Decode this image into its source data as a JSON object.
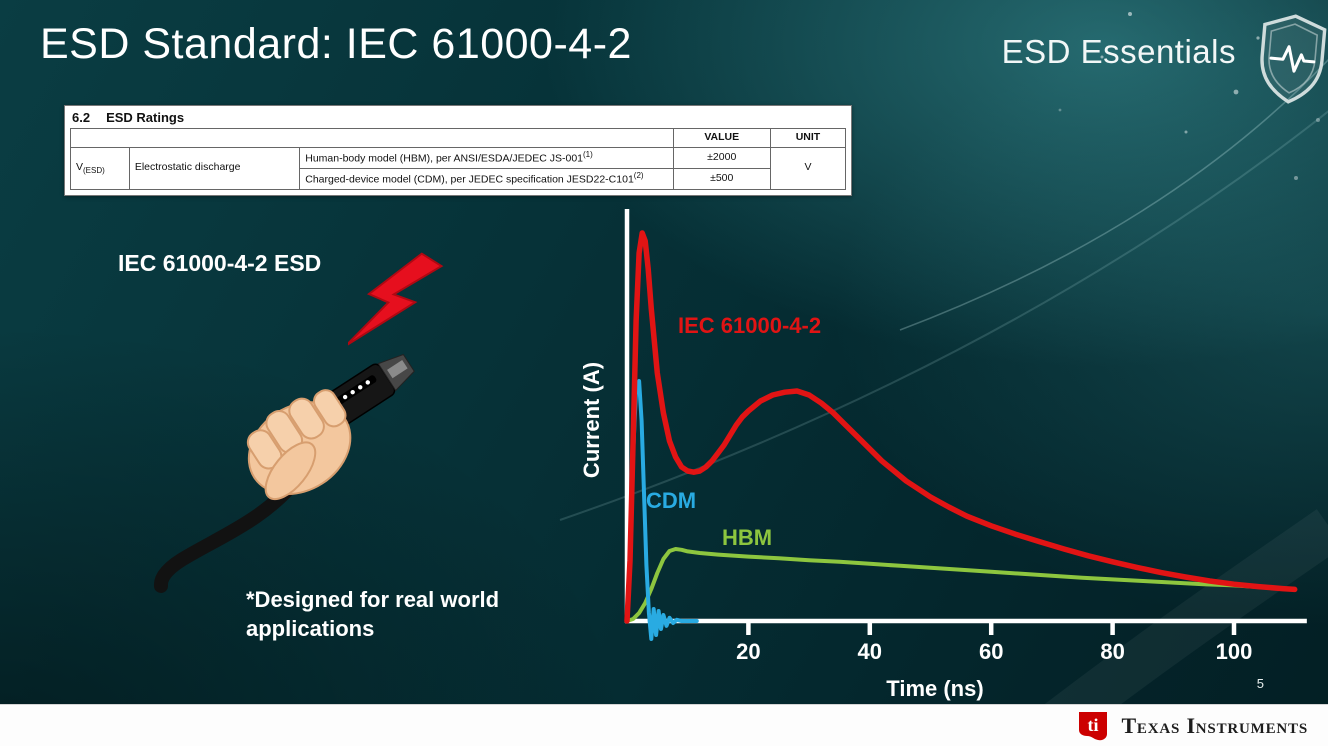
{
  "slide": {
    "title": "ESD Standard: IEC 61000-4-2",
    "brand": "ESD Essentials",
    "page_number": "5",
    "footer_text": "Texas Instruments"
  },
  "table": {
    "section": "6.2",
    "section_title": "ESD Ratings",
    "col_value": "VALUE",
    "col_unit": "UNIT",
    "symbol_base": "V",
    "symbol_sub": "(ESD)",
    "parameter": "Electrostatic discharge",
    "rows": [
      {
        "desc": "Human-body model (HBM), per ANSI/ESDA/JEDEC JS-001",
        "sup": "(1)",
        "value": "±2000"
      },
      {
        "desc": "Charged-device model (CDM), per JEDEC specification JESD22-C101",
        "sup": "(2)",
        "value": "±500"
      }
    ],
    "unit": "V"
  },
  "left": {
    "label": "IEC 61000-4-2 ESD",
    "note": "*Designed for real world\napplications"
  },
  "chart_data": {
    "type": "line",
    "title": "",
    "xlabel": "Time (ns)",
    "ylabel": "Current (A)",
    "xlim": [
      0,
      112
    ],
    "ylim": [
      -0.07,
      1.05
    ],
    "xticks": [
      20,
      40,
      60,
      80,
      100
    ],
    "y_units": "relative amplitude (no numeric y-axis scale shown)",
    "grid": false,
    "legend_position": "labels next to curves",
    "series": [
      {
        "name": "IEC 61000-4-2",
        "color": "#e11414",
        "points": [
          [
            0,
            0
          ],
          [
            0.5,
            0.15
          ],
          [
            1,
            0.45
          ],
          [
            1.5,
            0.75
          ],
          [
            2,
            0.92
          ],
          [
            2.5,
            0.97
          ],
          [
            3,
            0.95
          ],
          [
            3.5,
            0.88
          ],
          [
            4,
            0.78
          ],
          [
            5,
            0.62
          ],
          [
            6,
            0.52
          ],
          [
            7,
            0.45
          ],
          [
            8,
            0.41
          ],
          [
            9,
            0.385
          ],
          [
            10,
            0.375
          ],
          [
            11,
            0.372
          ],
          [
            12,
            0.375
          ],
          [
            13,
            0.385
          ],
          [
            14,
            0.4
          ],
          [
            15,
            0.42
          ],
          [
            16,
            0.44
          ],
          [
            17,
            0.465
          ],
          [
            18,
            0.49
          ],
          [
            19,
            0.51
          ],
          [
            20,
            0.525
          ],
          [
            22,
            0.55
          ],
          [
            24,
            0.565
          ],
          [
            26,
            0.572
          ],
          [
            28,
            0.575
          ],
          [
            30,
            0.565
          ],
          [
            32,
            0.545
          ],
          [
            34,
            0.52
          ],
          [
            36,
            0.49
          ],
          [
            38,
            0.46
          ],
          [
            40,
            0.43
          ],
          [
            42,
            0.4
          ],
          [
            44,
            0.375
          ],
          [
            46,
            0.35
          ],
          [
            48,
            0.33
          ],
          [
            50,
            0.31
          ],
          [
            53,
            0.285
          ],
          [
            56,
            0.262
          ],
          [
            60,
            0.238
          ],
          [
            64,
            0.217
          ],
          [
            68,
            0.198
          ],
          [
            72,
            0.18
          ],
          [
            76,
            0.163
          ],
          [
            80,
            0.148
          ],
          [
            84,
            0.134
          ],
          [
            88,
            0.121
          ],
          [
            92,
            0.11
          ],
          [
            96,
            0.1
          ],
          [
            100,
            0.092
          ],
          [
            104,
            0.086
          ],
          [
            108,
            0.081
          ],
          [
            110,
            0.079
          ]
        ]
      },
      {
        "name": "CDM",
        "color": "#29abe2",
        "points": [
          [
            0,
            0
          ],
          [
            0.5,
            0.18
          ],
          [
            1,
            0.42
          ],
          [
            1.5,
            0.58
          ],
          [
            2,
            0.6
          ],
          [
            2.4,
            0.5
          ],
          [
            2.8,
            0.32
          ],
          [
            3.2,
            0.14
          ],
          [
            3.6,
            0.02
          ],
          [
            4,
            -0.045
          ],
          [
            4.4,
            0.03
          ],
          [
            4.8,
            -0.035
          ],
          [
            5.2,
            0.025
          ],
          [
            5.6,
            -0.02
          ],
          [
            6,
            0.015
          ],
          [
            6.5,
            -0.012
          ],
          [
            7,
            0.008
          ],
          [
            7.6,
            -0.005
          ],
          [
            8.2,
            0.003
          ],
          [
            9,
            0
          ],
          [
            10,
            0
          ],
          [
            11.5,
            0
          ]
        ]
      },
      {
        "name": "HBM",
        "color": "#8dc63f",
        "points": [
          [
            0,
            0
          ],
          [
            1,
            0.005
          ],
          [
            2,
            0.02
          ],
          [
            3,
            0.045
          ],
          [
            4,
            0.08
          ],
          [
            5,
            0.12
          ],
          [
            6,
            0.155
          ],
          [
            7,
            0.175
          ],
          [
            8,
            0.18
          ],
          [
            9,
            0.178
          ],
          [
            10,
            0.174
          ],
          [
            12,
            0.17
          ],
          [
            15,
            0.166
          ],
          [
            20,
            0.161
          ],
          [
            25,
            0.157
          ],
          [
            30,
            0.152
          ],
          [
            35,
            0.148
          ],
          [
            40,
            0.143
          ],
          [
            45,
            0.138
          ],
          [
            50,
            0.133
          ],
          [
            55,
            0.128
          ],
          [
            60,
            0.123
          ],
          [
            65,
            0.118
          ],
          [
            70,
            0.113
          ],
          [
            75,
            0.108
          ],
          [
            80,
            0.104
          ],
          [
            85,
            0.1
          ],
          [
            90,
            0.096
          ],
          [
            95,
            0.092
          ],
          [
            100,
            0.089
          ],
          [
            105,
            0.084
          ],
          [
            110,
            0.08
          ]
        ]
      }
    ]
  }
}
